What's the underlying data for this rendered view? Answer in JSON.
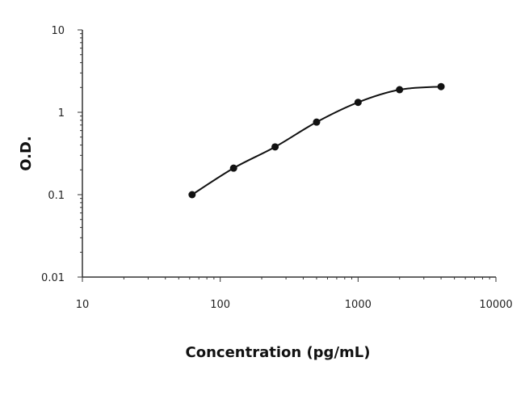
{
  "chart_data": {
    "type": "scatter",
    "title": "",
    "xlabel": "Concentration (pg/mL)",
    "ylabel": "O.D.",
    "x_scale": "log",
    "y_scale": "log",
    "xlim": [
      10,
      10000
    ],
    "ylim": [
      0.01,
      10
    ],
    "x_ticks": [
      10,
      100,
      1000,
      10000
    ],
    "x_tick_labels": [
      "10",
      "100",
      "1000",
      "10000"
    ],
    "y_ticks": [
      0.01,
      0.1,
      1,
      10
    ],
    "y_tick_labels": [
      "0.01",
      "0.1",
      "1",
      "10"
    ],
    "grid": false,
    "legend": "none",
    "series": [
      {
        "x": [
          62.5,
          125,
          250,
          500,
          1000,
          2000,
          4000
        ],
        "y": [
          0.1,
          0.21,
          0.38,
          0.76,
          1.32,
          1.88,
          2.05
        ],
        "marker": "filled-circle",
        "fit_line": true
      }
    ],
    "colors": {
      "points": "#111111",
      "curve": "#111111",
      "axis": "#333333"
    }
  }
}
